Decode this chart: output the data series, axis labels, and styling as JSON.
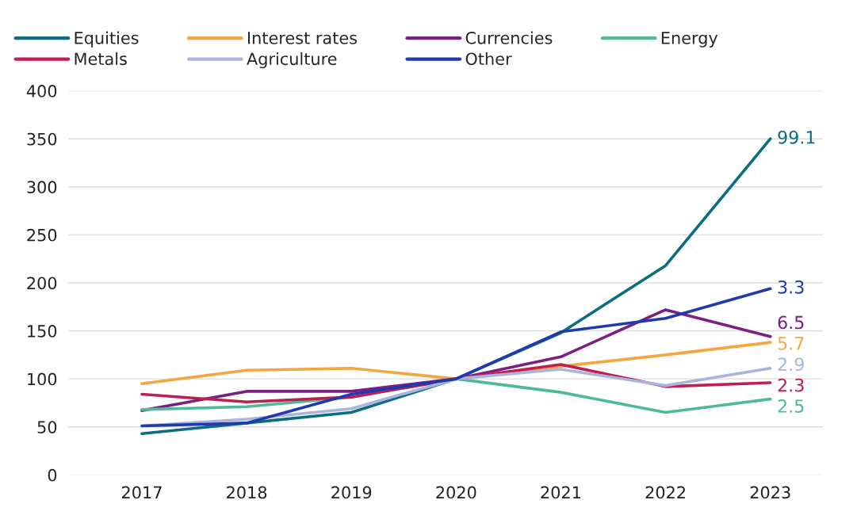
{
  "chart_data": {
    "type": "line",
    "categories": [
      "2017",
      "2018",
      "2019",
      "2020",
      "2021",
      "2022",
      "2023"
    ],
    "series": [
      {
        "name": "Equities",
        "color": "#0a6e80",
        "values": [
          43,
          54,
          65,
          100,
          148,
          218,
          350
        ]
      },
      {
        "name": "Interest rates",
        "color": "#f4a640",
        "values": [
          95,
          109,
          111,
          100,
          113,
          125,
          138
        ]
      },
      {
        "name": "Currencies",
        "color": "#7b1f82",
        "values": [
          67,
          87,
          87,
          100,
          123,
          172,
          144
        ]
      },
      {
        "name": "Energy",
        "color": "#4dbb98",
        "values": [
          68,
          71,
          81,
          100,
          86,
          65,
          79
        ]
      },
      {
        "name": "Metals",
        "color": "#c01e4f",
        "values": [
          84,
          76,
          81,
          100,
          115,
          92,
          96
        ]
      },
      {
        "name": "Agriculture",
        "color": "#a9b4df",
        "values": [
          51,
          58,
          69,
          100,
          110,
          93,
          111
        ]
      },
      {
        "name": "Other",
        "color": "#1f3aad",
        "values": [
          51,
          54,
          84,
          100,
          149,
          163,
          194
        ]
      }
    ],
    "annotations": [
      {
        "text": "99.1",
        "x": "2023",
        "y": 350
      },
      {
        "text": "3.3",
        "x": "2023",
        "y": 194
      },
      {
        "text": "6.5",
        "x": "2023",
        "y": 144
      },
      {
        "text": "5.7",
        "x": "2023",
        "y": 138
      },
      {
        "text": "2.9",
        "x": "2023",
        "y": 111
      },
      {
        "text": "2.3",
        "x": "2023",
        "y": 96
      },
      {
        "text": "2.5",
        "x": "2023",
        "y": 79
      }
    ],
    "ylim": [
      0,
      400
    ],
    "yticks": [
      0,
      50,
      100,
      150,
      200,
      250,
      300,
      350,
      400
    ],
    "grid": "y",
    "legend": "top",
    "marker": "none",
    "line_style": "solid"
  }
}
